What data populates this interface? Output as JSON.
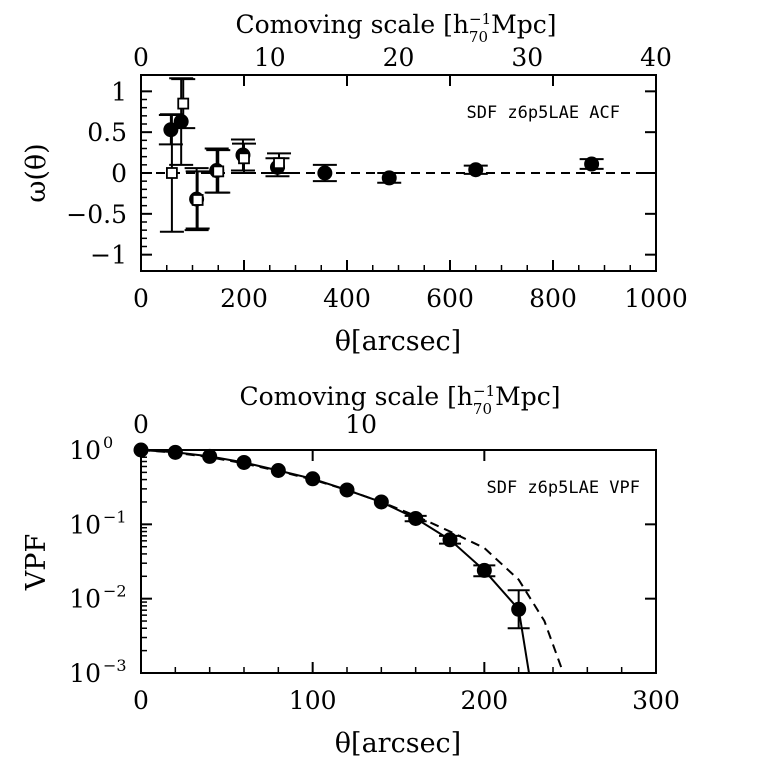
{
  "chart_data": [
    {
      "type": "scatter",
      "panel_label": "SDF z6p5LAE ACF",
      "xlabel": "θ[arcsec]",
      "ylabel": "ω(θ)",
      "top_axis": {
        "label_main": "Comoving scale [h",
        "label_sup": "−1",
        "label_sub": "70",
        "label_tail": "Mpc]",
        "ticks": [
          "0",
          "10",
          "20",
          "30",
          "40"
        ],
        "range": [
          0,
          40
        ]
      },
      "xlim": [
        0,
        1000
      ],
      "ylim": [
        -1.2,
        1.2
      ],
      "x_ticks": [
        "0",
        "200",
        "400",
        "600",
        "800",
        "1000"
      ],
      "y_ticks": [
        "−1",
        "−0.5",
        "0",
        "0.5",
        "1"
      ],
      "reference_line": {
        "y": 0,
        "style": "dashed"
      },
      "series": [
        {
          "marker": "filled-circle",
          "points": [
            {
              "x": 58,
              "y": 0.53,
              "err": 0.18
            },
            {
              "x": 78,
              "y": 0.63,
              "err": 0.53
            },
            {
              "x": 108,
              "y": -0.32,
              "err": 0.38
            },
            {
              "x": 147,
              "y": 0.03,
              "err": 0.27
            },
            {
              "x": 198,
              "y": 0.22,
              "err": 0.19
            },
            {
              "x": 265,
              "y": 0.07,
              "err": 0.11
            },
            {
              "x": 357,
              "y": 0.0,
              "err": 0.1
            },
            {
              "x": 482,
              "y": -0.06,
              "err": 0.06
            },
            {
              "x": 650,
              "y": 0.04,
              "err": 0.05
            },
            {
              "x": 875,
              "y": 0.11,
              "err": 0.06
            }
          ]
        },
        {
          "marker": "open-square",
          "points": [
            {
              "x": 60,
              "y": 0.0,
              "err": 0.72
            },
            {
              "x": 82,
              "y": 0.85,
              "err": 0.3
            },
            {
              "x": 110,
              "y": -0.33,
              "err": 0.35
            },
            {
              "x": 150,
              "y": 0.02,
              "err": 0.26
            },
            {
              "x": 200,
              "y": 0.18,
              "err": 0.18
            },
            {
              "x": 268,
              "y": 0.12,
              "err": 0.12
            }
          ]
        }
      ]
    },
    {
      "type": "line",
      "panel_label": "SDF z6p5LAE VPF",
      "xlabel": "θ[arcsec]",
      "ylabel": "VPF",
      "top_axis": {
        "label_main": "Comoving scale [h",
        "label_sup": "−1",
        "label_sub": "70",
        "label_tail": "Mpc]",
        "ticks": [
          "0",
          "10"
        ],
        "range": [
          0,
          23.4
        ]
      },
      "xlim": [
        0,
        300
      ],
      "ylim": [
        0.001,
        1
      ],
      "y_scale": "log",
      "x_ticks": [
        "0",
        "100",
        "200",
        "300"
      ],
      "y_ticks": [
        {
          "base": "10",
          "exp": "0",
          "value": 1
        },
        {
          "base": "10",
          "exp": "−1",
          "value": 0.1
        },
        {
          "base": "10",
          "exp": "−2",
          "value": 0.01
        },
        {
          "base": "10",
          "exp": "−3",
          "value": 0.001
        }
      ],
      "series": [
        {
          "marker": "filled-circle",
          "line": "solid",
          "points": [
            {
              "x": 0,
              "y": 1.0
            },
            {
              "x": 20,
              "y": 0.93
            },
            {
              "x": 40,
              "y": 0.82
            },
            {
              "x": 60,
              "y": 0.68
            },
            {
              "x": 80,
              "y": 0.53
            },
            {
              "x": 100,
              "y": 0.41
            },
            {
              "x": 120,
              "y": 0.29
            },
            {
              "x": 140,
              "y": 0.2
            },
            {
              "x": 160,
              "y": 0.12
            },
            {
              "x": 180,
              "y": 0.062
            },
            {
              "x": 200,
              "y": 0.024
            },
            {
              "x": 220,
              "y": 0.0072
            }
          ],
          "errors": [
            {
              "x": 160,
              "lo": 0.11,
              "hi": 0.13
            },
            {
              "x": 180,
              "lo": 0.055,
              "hi": 0.07
            },
            {
              "x": 200,
              "lo": 0.02,
              "hi": 0.028
            },
            {
              "x": 220,
              "lo": 0.004,
              "hi": 0.013
            }
          ],
          "tail": [
            {
              "x": 220,
              "y": 0.0072
            },
            {
              "x": 226,
              "y": 0.001
            }
          ]
        },
        {
          "line": "dashed",
          "points": [
            {
              "x": 0,
              "y": 1.0
            },
            {
              "x": 20,
              "y": 0.92
            },
            {
              "x": 40,
              "y": 0.8
            },
            {
              "x": 60,
              "y": 0.66
            },
            {
              "x": 80,
              "y": 0.52
            },
            {
              "x": 100,
              "y": 0.4
            },
            {
              "x": 120,
              "y": 0.29
            },
            {
              "x": 140,
              "y": 0.2
            },
            {
              "x": 160,
              "y": 0.13
            },
            {
              "x": 180,
              "y": 0.08
            },
            {
              "x": 200,
              "y": 0.048
            },
            {
              "x": 220,
              "y": 0.018
            },
            {
              "x": 235,
              "y": 0.005
            },
            {
              "x": 246,
              "y": 0.001
            }
          ]
        }
      ]
    }
  ]
}
